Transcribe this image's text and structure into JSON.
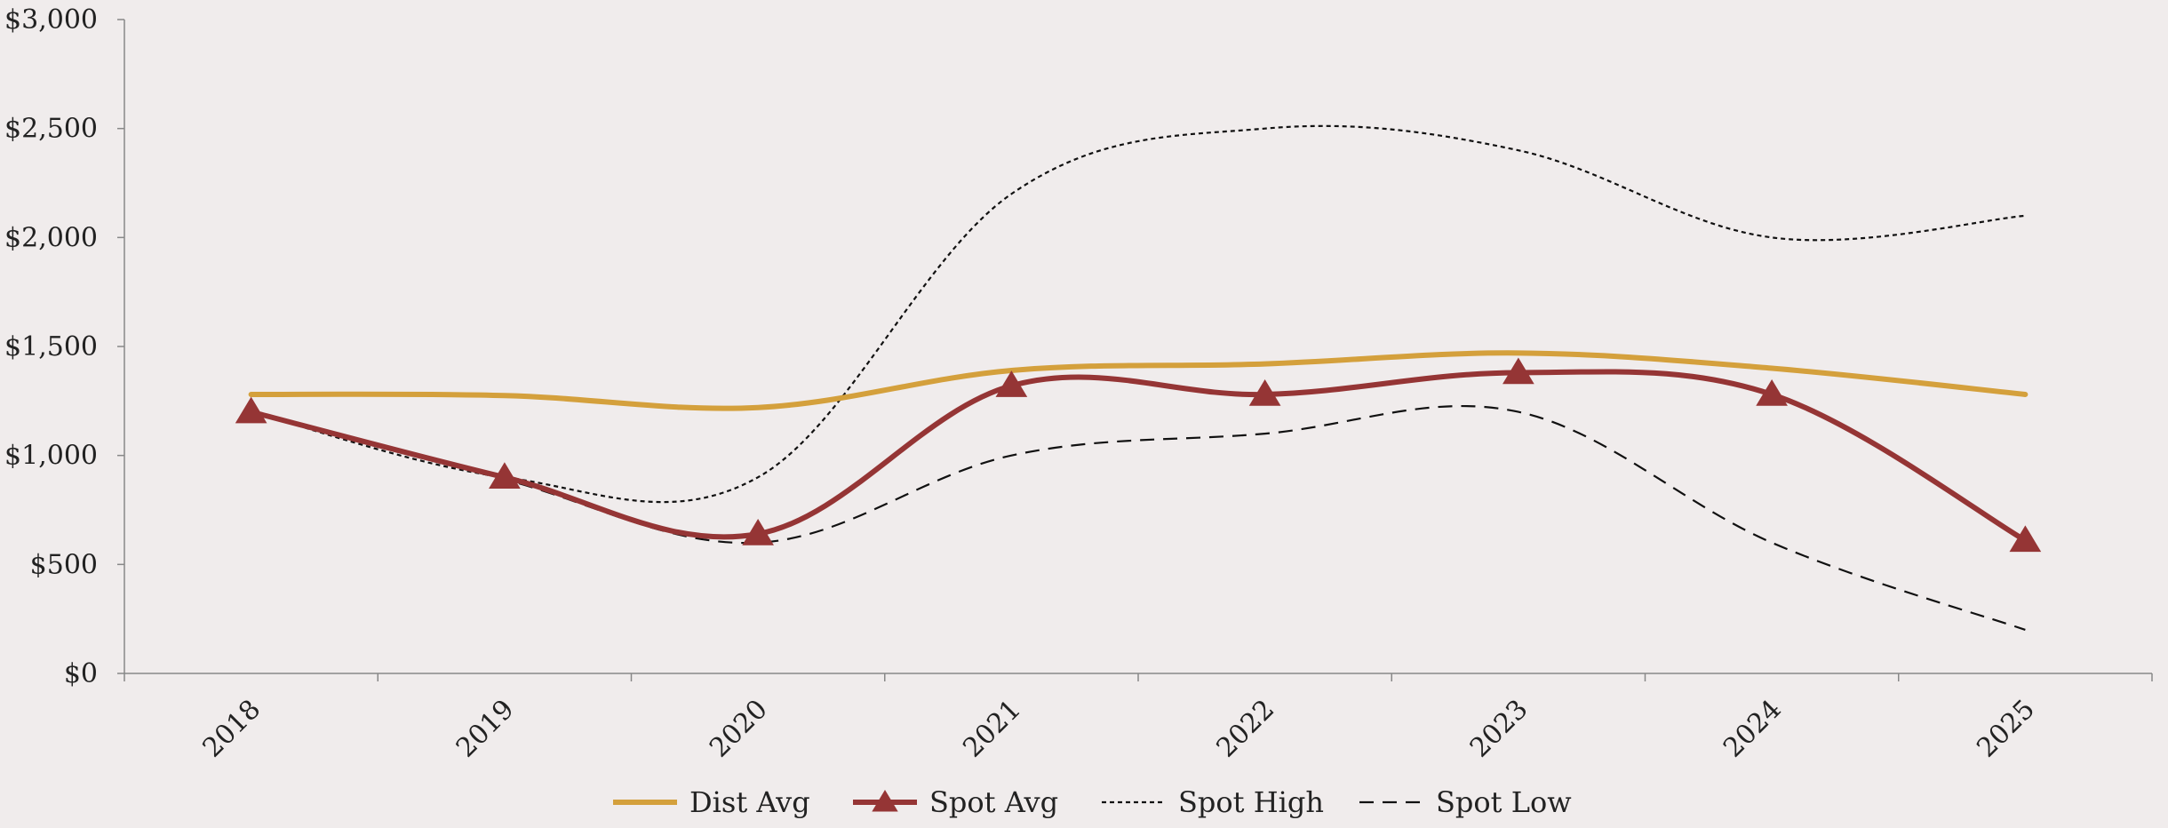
{
  "chart_data": {
    "type": "line",
    "title": "",
    "xlabel": "",
    "ylabel": "",
    "categories": [
      "2018",
      "2019",
      "2020",
      "2021",
      "2022",
      "2023",
      "2024",
      "2025"
    ],
    "ylim": [
      0,
      3000
    ],
    "yticks": [
      0,
      500,
      1000,
      1500,
      2000,
      2500,
      3000
    ],
    "ytick_labels": [
      "$0",
      "$500",
      "$1,000",
      "$1,500",
      "$2,000",
      "$2,500",
      "$3,000"
    ],
    "grid": false,
    "legend_position": "bottom",
    "series": [
      {
        "name": "Dist Avg",
        "values": [
          1280,
          1275,
          1220,
          1390,
          1420,
          1470,
          1400,
          1280
        ],
        "color": "#d4a03c",
        "style": "solid-thick",
        "marker": "none"
      },
      {
        "name": "Spot Avg",
        "values": [
          1200,
          900,
          640,
          1320,
          1280,
          1380,
          1280,
          610
        ],
        "color": "#953535",
        "style": "solid-thick",
        "marker": "triangle"
      },
      {
        "name": "Spot High",
        "values": [
          1200,
          900,
          900,
          2200,
          2500,
          2400,
          2000,
          2100
        ],
        "color": "#111111",
        "style": "dotted",
        "marker": "none"
      },
      {
        "name": "Spot Low",
        "values": [
          1200,
          890,
          600,
          1000,
          1100,
          1200,
          600,
          200
        ],
        "color": "#111111",
        "style": "dashed",
        "marker": "none"
      }
    ]
  }
}
